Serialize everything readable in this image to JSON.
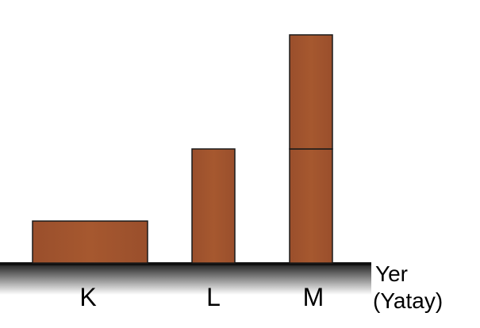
{
  "colors": {
    "block_fill": "#A0522D",
    "block_edge": "#1a1a1a",
    "ground_top": "#1a1a1a",
    "ground_fade": "#ffffff"
  },
  "objects": [
    {
      "label": "K",
      "blocks": 1,
      "orientation": "horizontal"
    },
    {
      "label": "L",
      "blocks": 1,
      "orientation": "vertical"
    },
    {
      "label": "M",
      "blocks": 2,
      "orientation": "vertical-stacked"
    }
  ],
  "ground": {
    "label_line1": "Yer",
    "label_line2": "(Yatay)"
  }
}
